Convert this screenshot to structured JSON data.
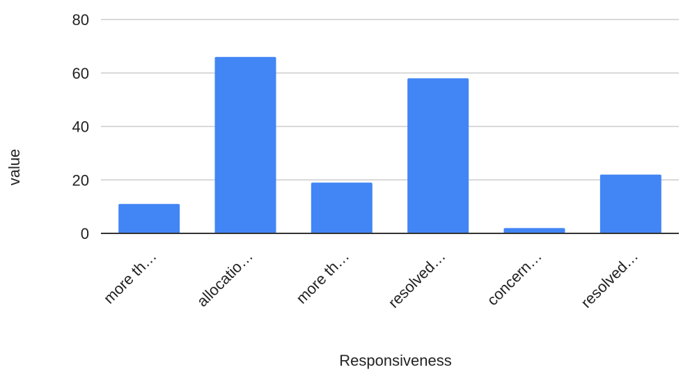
{
  "chart_data": {
    "type": "bar",
    "title": "",
    "xlabel": "Responsiveness",
    "ylabel": "value",
    "categories": [
      "more th…",
      "allocatio…",
      "more th…",
      "resolved…",
      "concern…",
      "resolved…"
    ],
    "values": [
      11,
      66,
      19,
      58,
      2,
      22
    ],
    "ylim": [
      0,
      80
    ],
    "yticks": [
      0,
      20,
      40,
      60,
      80
    ],
    "grid": true,
    "legend": "none",
    "bar_color": "#4285f4"
  }
}
